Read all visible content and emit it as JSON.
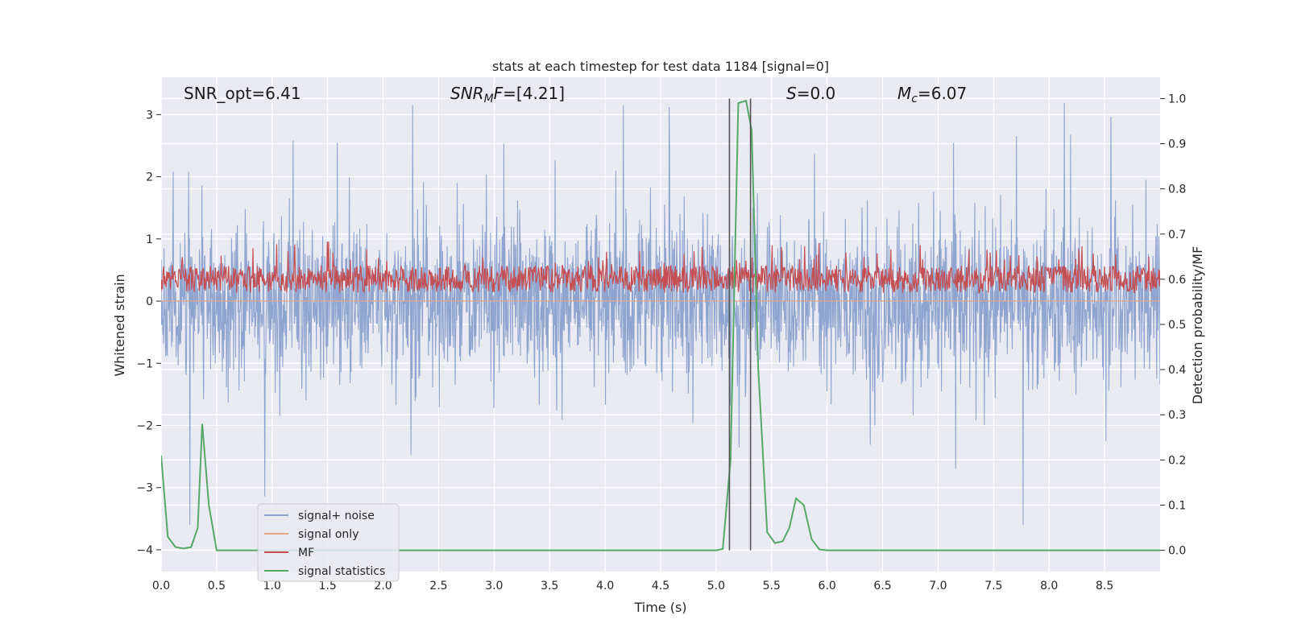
{
  "chart_data": {
    "type": "line",
    "title": "stats at each timestep for test data 1184 [signal=0]",
    "xlabel": "Time (s)",
    "ylabel_left": "Whitened strain",
    "ylabel_right": "Detection probability/MF",
    "xlim": [
      0.0,
      9.0
    ],
    "ylim_left": [
      -4.35,
      3.6
    ],
    "ylim_right": [
      -0.047,
      1.047
    ],
    "xticks": [
      "0.0",
      "0.5",
      "1.0",
      "1.5",
      "2.0",
      "2.5",
      "3.0",
      "3.5",
      "4.0",
      "4.5",
      "5.0",
      "5.5",
      "6.0",
      "6.5",
      "7.0",
      "7.5",
      "8.0",
      "8.5"
    ],
    "yticks_left": [
      "3",
      "2",
      "1",
      "0",
      "−1",
      "−2",
      "−3",
      "−4"
    ],
    "yticks_right": [
      "1.0",
      "0.9",
      "0.8",
      "0.7",
      "0.6",
      "0.5",
      "0.4",
      "0.3",
      "0.2",
      "0.1",
      "0.0"
    ],
    "annotations": {
      "snr_opt": "SNR_opt=6.41",
      "snr_mf_label": "SNR",
      "snr_mf_sub": "M",
      "snr_mf_rest": "F",
      "snr_mf_value": "=[4.21]",
      "s_label": "S",
      "s_value": "=0.0",
      "mc_label": "M",
      "mc_sub": "c",
      "mc_value": "=6.07"
    },
    "vlines": [
      5.12,
      5.31
    ],
    "series": [
      {
        "name": "signal+ noise",
        "color": "#8fa5cf",
        "axis": "left",
        "noise_amplitude": 1.0,
        "extremes": [
          3.15,
          -3.6
        ]
      },
      {
        "name": "signal only",
        "color": "#e9a385",
        "axis": "left",
        "values_note": "flat at 0"
      },
      {
        "name": "MF",
        "color": "#c44e52",
        "axis": "right",
        "baseline": 0.6,
        "range": [
          0.55,
          0.7
        ]
      },
      {
        "name": "signal statistics",
        "color": "#55a868",
        "axis": "right",
        "x": [
          0.0,
          0.06,
          0.13,
          0.2,
          0.27,
          0.33,
          0.37,
          0.43,
          0.5,
          0.6,
          1.0,
          2.0,
          3.0,
          4.0,
          4.5,
          5.0,
          5.06,
          5.13,
          5.2,
          5.27,
          5.32,
          5.38,
          5.46,
          5.53,
          5.6,
          5.66,
          5.72,
          5.79,
          5.86,
          5.93,
          6.0,
          7.0,
          8.0,
          9.0
        ],
        "y": [
          0.21,
          0.03,
          0.007,
          0.004,
          0.007,
          0.05,
          0.28,
          0.1,
          0.0,
          0.0,
          0.0,
          0.0,
          0.0,
          0.0,
          0.0,
          0.0,
          0.003,
          0.2,
          0.99,
          0.995,
          0.93,
          0.4,
          0.04,
          0.016,
          0.02,
          0.05,
          0.115,
          0.1,
          0.025,
          0.002,
          0.0,
          0.0,
          0.0,
          0.0
        ]
      }
    ]
  }
}
